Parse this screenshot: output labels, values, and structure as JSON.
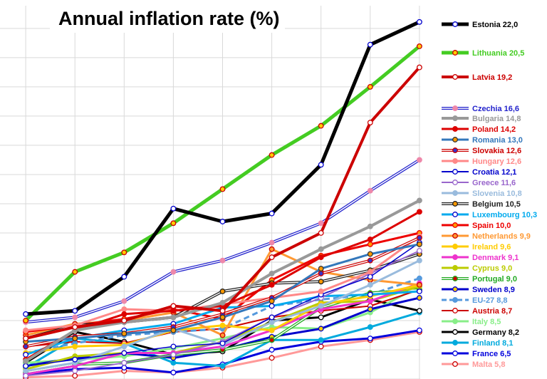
{
  "chart_data": {
    "type": "line",
    "title": "Annual inflation rate (%)",
    "x": [
      1,
      2,
      3,
      4,
      5,
      6,
      7,
      8,
      9
    ],
    "ylim": [
      0,
      23
    ],
    "grid": true,
    "legend_position": "right",
    "series": [
      {
        "name": "Estonia 22,0",
        "color": "#000000",
        "marker_fill": "#ffffff",
        "marker_stroke": "#0000cc",
        "width": 5,
        "style": "solid",
        "values": [
          null,
          null,
          null,
          null,
          null,
          null,
          null,
          20.6,
          22.0
        ],
        "pre": [
          4.0,
          4.2,
          6.3,
          10.5,
          9.7,
          10.2,
          13.2,
          19.7
        ]
      },
      {
        "name": "Lithuania 20,5",
        "color": "#44cc22",
        "marker_fill": "#ffcc00",
        "marker_stroke": "#cc0000",
        "width": 5,
        "style": "solid",
        "values": [
          3.6,
          6.6,
          7.8,
          9.6,
          11.7,
          13.8,
          15.6,
          18.0,
          20.5
        ]
      },
      {
        "name": "Latvia 19,2",
        "color": "#cc0000",
        "marker_fill": "#ffffff",
        "marker_stroke": "#cc0000",
        "width": 4,
        "style": "solid",
        "values": [
          2.5,
          3.2,
          3.6,
          4.5,
          4.2,
          7.5,
          9.0,
          15.8,
          19.2
        ]
      },
      {
        "name": "Czechia 16,6",
        "color": "#2222cc",
        "marker_fill": "#ee88aa",
        "marker_stroke": "#ee88aa",
        "width": 3,
        "style": "double",
        "values": [
          3.5,
          3.8,
          4.8,
          6.6,
          7.3,
          8.4,
          9.6,
          11.6,
          13.5
        ]
      },
      {
        "name": "Bulgaria 14,8",
        "color": "#999999",
        "marker_fill": "#999999",
        "marker_stroke": "#999999",
        "width": 4,
        "style": "solid",
        "values": [
          1.1,
          3.0,
          3.5,
          3.8,
          4.7,
          6.5,
          8.0,
          9.4,
          11.0
        ]
      },
      {
        "name": "Poland 14,2",
        "color": "#dd0000",
        "marker_fill": "#dd0000",
        "marker_stroke": "#dd0000",
        "width": 3,
        "style": "solid",
        "values": [
          1.2,
          3.0,
          4.0,
          4.2,
          4.5,
          5.8,
          7.5,
          8.6,
          10.3
        ]
      },
      {
        "name": "Romania 13,0",
        "color": "#3377bb",
        "marker_fill": "#ff9900",
        "marker_stroke": "#333333",
        "width": 3,
        "style": "solid",
        "values": [
          2.3,
          2.5,
          2.8,
          3.0,
          3.8,
          4.8,
          6.8,
          7.7,
          8.3
        ]
      },
      {
        "name": "Slovakia 12,6",
        "color": "#cc0000",
        "marker_fill": "#3333cc",
        "marker_stroke": "#cc0000",
        "width": 2,
        "style": "double",
        "values": [
          2.0,
          2.6,
          2.8,
          3.2,
          4.0,
          5.0,
          6.5,
          7.3,
          8.7
        ]
      },
      {
        "name": "Hungary 12,6",
        "color": "#ff8888",
        "marker_fill": "#ff8888",
        "marker_stroke": "#ff8888",
        "width": 3,
        "style": "solid",
        "values": [
          3.0,
          3.3,
          4.3,
          4.2,
          4.6,
          5.0,
          5.4,
          6.6,
          8.8
        ]
      },
      {
        "name": "Croatia 12,1",
        "color": "#0000cc",
        "marker_fill": "#ffffff",
        "marker_stroke": "#0000cc",
        "width": 1.5,
        "style": "solid",
        "values": [
          0.8,
          1.2,
          1.6,
          2.0,
          2.2,
          3.8,
          5.2,
          6.3,
          8.4
        ]
      },
      {
        "name": "Greece 11,6",
        "color": "#9966cc",
        "marker_fill": "#ffffff",
        "marker_stroke": "#9966cc",
        "width": 2,
        "style": "solid",
        "values": [
          0.2,
          0.5,
          1.0,
          1.5,
          2.3,
          3.8,
          5.0,
          6.5,
          7.9
        ]
      },
      {
        "name": "Slovenia 10,8",
        "color": "#99bbdd",
        "marker_fill": "#99bbdd",
        "marker_stroke": "#99bbdd",
        "width": 3,
        "style": "solid",
        "values": [
          0.5,
          1.0,
          2.0,
          3.1,
          2.1,
          3.5,
          4.5,
          5.8,
          7.3
        ]
      },
      {
        "name": "Belgium 10,5",
        "color": "#222222",
        "marker_fill": "#ff9900",
        "marker_stroke": "#222222",
        "width": 3,
        "style": "double",
        "values": [
          2.5,
          3.3,
          3.5,
          3.8,
          5.4,
          5.9,
          6.0,
          6.7,
          7.7
        ]
      },
      {
        "name": "Luxembourg 10,3",
        "color": "#00aaee",
        "marker_fill": "#ffffff",
        "marker_stroke": "#0000cc",
        "width": 3,
        "style": "solid",
        "values": [
          1.5,
          2.5,
          3.0,
          3.4,
          4.4,
          4.5,
          5.1,
          5.2,
          5.4
        ]
      },
      {
        "name": "Spain 10,0",
        "color": "#ee0000",
        "marker_fill": "#ff9900",
        "marker_stroke": "#ee0000",
        "width": 3,
        "style": "solid",
        "values": [
          2.9,
          3.3,
          3.7,
          4.3,
          3.7,
          6.1,
          7.6,
          8.3,
          9.0
        ]
      },
      {
        "name": "Netherlands 9,9",
        "color": "#ff9933",
        "marker_fill": "#ff9933",
        "marker_stroke": "#cc0000",
        "width": 3,
        "style": "solid",
        "values": [
          2.7,
          3.4,
          3.6,
          4.1,
          2.7,
          8.0,
          6.6,
          6.1,
          5.8
        ]
      },
      {
        "name": "Ireland 9,6",
        "color": "#ffcc00",
        "marker_fill": "#ffcc00",
        "marker_stroke": "#ffcc00",
        "width": 3,
        "style": "solid",
        "values": [
          1.6,
          2.0,
          2.1,
          3.0,
          3.3,
          3.0,
          4.6,
          5.1,
          5.8
        ]
      },
      {
        "name": "Denmark 9,1",
        "color": "#ee33cc",
        "marker_fill": "#ee33cc",
        "marker_stroke": "#ee33cc",
        "width": 3,
        "style": "solid",
        "values": [
          0.3,
          0.8,
          1.6,
          1.6,
          2.0,
          3.0,
          4.3,
          4.8,
          5.9
        ]
      },
      {
        "name": "Cyprus 9,0",
        "color": "#bbcc00",
        "marker_fill": "#bbcc00",
        "marker_stroke": "#bbcc00",
        "width": 3,
        "style": "solid",
        "values": [
          0.6,
          1.4,
          1.6,
          1.6,
          2.3,
          3.5,
          4.7,
          4.8,
          5.7
        ]
      },
      {
        "name": "Portugal 9,0",
        "color": "#22aa22",
        "marker_fill": "#cc0000",
        "marker_stroke": "#22aa22",
        "width": 1.5,
        "style": "double",
        "values": [
          0.4,
          0.9,
          1.0,
          1.5,
          1.8,
          2.4,
          4.4,
          5.3,
          5.5
        ]
      },
      {
        "name": "Sweden 8,9",
        "color": "#0000cc",
        "marker_fill": "#ffcc00",
        "marker_stroke": "#0000cc",
        "width": 3,
        "style": "solid",
        "values": [
          0.8,
          1.3,
          1.6,
          1.3,
          1.8,
          2.6,
          3.1,
          4.3,
          5.0
        ]
      },
      {
        "name": "EU-27 8,8",
        "color": "#5599dd",
        "marker_fill": "#5599dd",
        "marker_stroke": "#5599dd",
        "width": 3,
        "style": "dashed",
        "values": [
          1.6,
          2.2,
          2.7,
          2.9,
          3.1,
          4.5,
          4.9,
          5.2,
          6.2
        ]
      },
      {
        "name": "Austria 8,7",
        "color": "#cc0000",
        "marker_fill": "#ffffff",
        "marker_stroke": "#cc0000",
        "width": 2,
        "style": "solid",
        "values": [
          2.0,
          2.3,
          2.2,
          2.9,
          3.1,
          3.8,
          4.2,
          4.5,
          5.5
        ]
      },
      {
        "name": "Italy 8,5",
        "color": "#88ee88",
        "marker_fill": "#88ee88",
        "marker_stroke": "#88ee88",
        "width": 3,
        "style": "solid",
        "values": [
          1.0,
          1.2,
          1.4,
          1.9,
          2.5,
          3.2,
          3.1,
          4.1,
          5.7
        ]
      },
      {
        "name": "Germany 8,2",
        "color": "#000000",
        "marker_fill": "#ffffff",
        "marker_stroke": "#000000",
        "width": 3,
        "style": "solid",
        "values": [
          1.0,
          2.9,
          2.3,
          1.5,
          1.7,
          3.6,
          3.8,
          4.9,
          4.2
        ]
      },
      {
        "name": "Finland 8,1",
        "color": "#00aadd",
        "marker_fill": "#00aadd",
        "marker_stroke": "#00aadd",
        "width": 3,
        "style": "solid",
        "values": [
          0.7,
          2.5,
          2.2,
          1.0,
          0.8,
          2.4,
          2.4,
          3.2,
          4.1
        ]
      },
      {
        "name": "France 6,5",
        "color": "#0000dd",
        "marker_fill": "#ffffff",
        "marker_stroke": "#0000dd",
        "width": 3,
        "style": "solid",
        "values": [
          0.3,
          0.6,
          0.7,
          0.4,
          0.9,
          1.8,
          2.3,
          2.5,
          3.0
        ]
      },
      {
        "name": "Malta 5,8",
        "color": "#ff9999",
        "marker_fill": "#ffffff",
        "marker_stroke": "#cc0000",
        "width": 3,
        "style": "solid",
        "values": [
          0.1,
          0.2,
          0.5,
          0.4,
          0.7,
          1.3,
          2.0,
          2.4,
          2.9
        ]
      }
    ]
  }
}
